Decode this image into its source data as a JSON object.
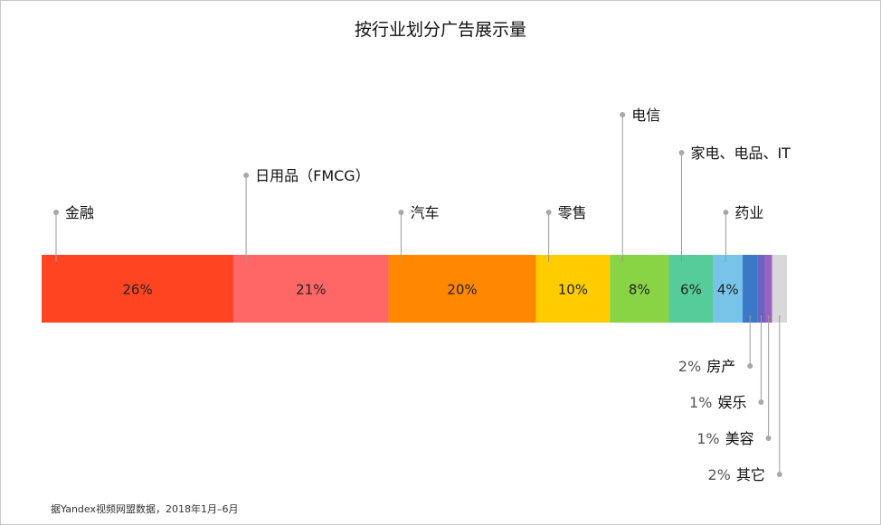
{
  "chart_data": {
    "type": "bar",
    "title": "按行业划分广告展示量",
    "orientation": "horizontal-stacked-100",
    "series": [
      {
        "name": "金融",
        "value": 26,
        "label": "26%",
        "color": "#ff4422",
        "callout": "above"
      },
      {
        "name": "日用品（FMCG）",
        "value": 21,
        "label": "21%",
        "color": "#ff6666",
        "callout": "above"
      },
      {
        "name": "汽车",
        "value": 20,
        "label": "20%",
        "color": "#ff8800",
        "callout": "above"
      },
      {
        "name": "零售",
        "value": 10,
        "label": "10%",
        "color": "#ffcc00",
        "callout": "above"
      },
      {
        "name": "电信",
        "value": 8,
        "label": "8%",
        "color": "#88d444",
        "callout": "above"
      },
      {
        "name": "家电、电品、IT",
        "value": 6,
        "label": "6%",
        "color": "#55cc99",
        "callout": "above"
      },
      {
        "name": "药业",
        "value": 4,
        "label": "4%",
        "color": "#77c4e8",
        "callout": "above"
      },
      {
        "name": "房产",
        "value": 2,
        "label": "2%",
        "color": "#3a78c8",
        "callout": "below"
      },
      {
        "name": "娱乐",
        "value": 1,
        "label": "1%",
        "color": "#6a62c0",
        "callout": "below"
      },
      {
        "name": "美容",
        "value": 1,
        "label": "1%",
        "color": "#9a62c0",
        "callout": "below"
      },
      {
        "name": "其它",
        "value": 2,
        "label": "2%",
        "color": "#d8d8d8",
        "callout": "below"
      }
    ],
    "source_note": "据Yandex视频网盟数据，2018年1月–6月"
  }
}
